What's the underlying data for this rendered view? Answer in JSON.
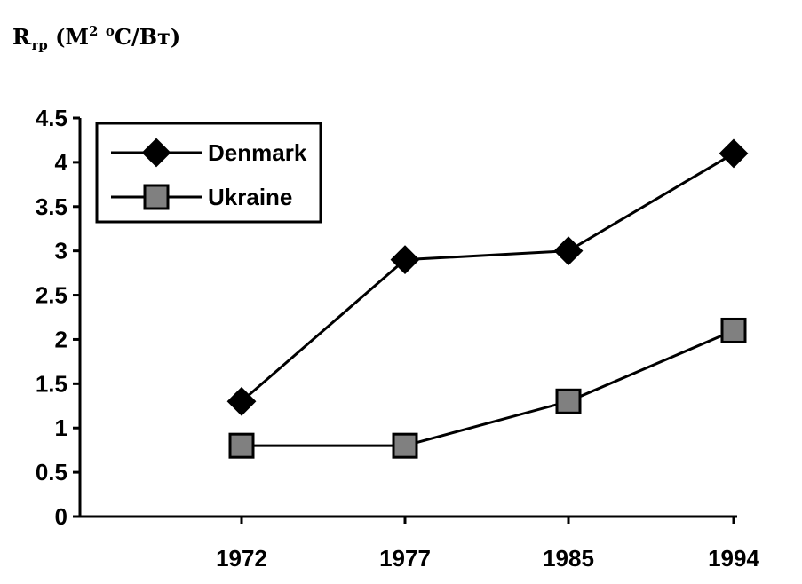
{
  "chart_data": {
    "type": "line",
    "ylabel": {
      "main": "R",
      "sub": "тр",
      "unit_open": " (М",
      "unit_sup": "2",
      "unit_space": " ",
      "unit_deg": "о",
      "unit_close": "С/Вт)"
    },
    "categories": [
      "1972",
      "1977",
      "1985",
      "1994"
    ],
    "yticks": [
      "0",
      "0.5",
      "1",
      "1.5",
      "2",
      "2.5",
      "3",
      "3.5",
      "4",
      "4.5"
    ],
    "ylim": [
      0,
      4.5
    ],
    "grid": false,
    "legend_position": "top-left",
    "series": [
      {
        "name": "Denmark",
        "marker": "diamond",
        "values": [
          1.3,
          2.9,
          3.0,
          4.1
        ]
      },
      {
        "name": "Ukraine",
        "marker": "square",
        "values": [
          0.8,
          0.8,
          1.3,
          2.1
        ]
      }
    ]
  },
  "colors": {
    "line": "#000000",
    "diamond_fill": "#000000",
    "square_fill": "#808080",
    "background": "#ffffff"
  }
}
